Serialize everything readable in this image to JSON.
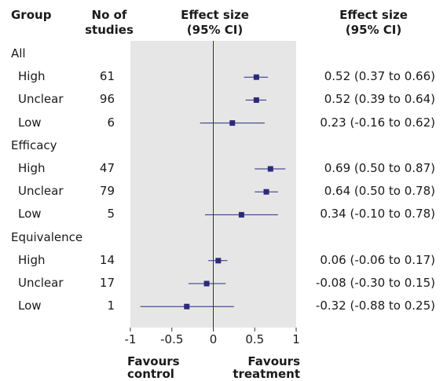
{
  "headers": {
    "group": "Group",
    "n_line1": "No of",
    "n_line2": "studies",
    "es_mid_line1": "Effect size",
    "es_mid_line2": "(95% CI)",
    "es_right_line1": "Effect size",
    "es_right_line2": "(95% CI)"
  },
  "footer": {
    "favours_control_line1": "Favours",
    "favours_control_line2": "control",
    "favours_treatment_line1": "Favours",
    "favours_treatment_line2": "treatment"
  },
  "colors": {
    "marker": "#2b2a7a",
    "panel": "#e6e6e6",
    "text": "#1a1a1a"
  },
  "chart_data": {
    "type": "forest",
    "xlim": [
      -1,
      1
    ],
    "xticks": [
      "-1",
      "-0.5",
      "0",
      "0.5",
      "1"
    ],
    "reference_line": 0,
    "groups": [
      {
        "name": "All",
        "rows": [
          {
            "label": "High",
            "n": "61",
            "est": 0.52,
            "lo": 0.37,
            "hi": 0.66,
            "ci_text": "0.52 (0.37 to 0.66)"
          },
          {
            "label": "Unclear",
            "n": "96",
            "est": 0.52,
            "lo": 0.39,
            "hi": 0.64,
            "ci_text": "0.52 (0.39 to 0.64)"
          },
          {
            "label": "Low",
            "n": "6",
            "est": 0.23,
            "lo": -0.16,
            "hi": 0.62,
            "ci_text": "0.23 (-0.16 to 0.62)"
          }
        ]
      },
      {
        "name": "Efficacy",
        "rows": [
          {
            "label": "High",
            "n": "47",
            "est": 0.69,
            "lo": 0.5,
            "hi": 0.87,
            "ci_text": "0.69 (0.50 to 0.87)"
          },
          {
            "label": "Unclear",
            "n": "79",
            "est": 0.64,
            "lo": 0.5,
            "hi": 0.78,
            "ci_text": "0.64 (0.50 to 0.78)"
          },
          {
            "label": "Low",
            "n": "5",
            "est": 0.34,
            "lo": -0.1,
            "hi": 0.78,
            "ci_text": "0.34 (-0.10 to 0.78)"
          }
        ]
      },
      {
        "name": "Equivalence",
        "rows": [
          {
            "label": "High",
            "n": "14",
            "est": 0.06,
            "lo": -0.06,
            "hi": 0.17,
            "ci_text": "0.06 (-0.06 to 0.17)"
          },
          {
            "label": "Unclear",
            "n": "17",
            "est": -0.08,
            "lo": -0.3,
            "hi": 0.15,
            "ci_text": "-0.08 (-0.30 to 0.15)"
          },
          {
            "label": "Low",
            "n": "1",
            "est": -0.32,
            "lo": -0.88,
            "hi": 0.25,
            "ci_text": "-0.32 (-0.88 to 0.25)"
          }
        ]
      }
    ]
  }
}
